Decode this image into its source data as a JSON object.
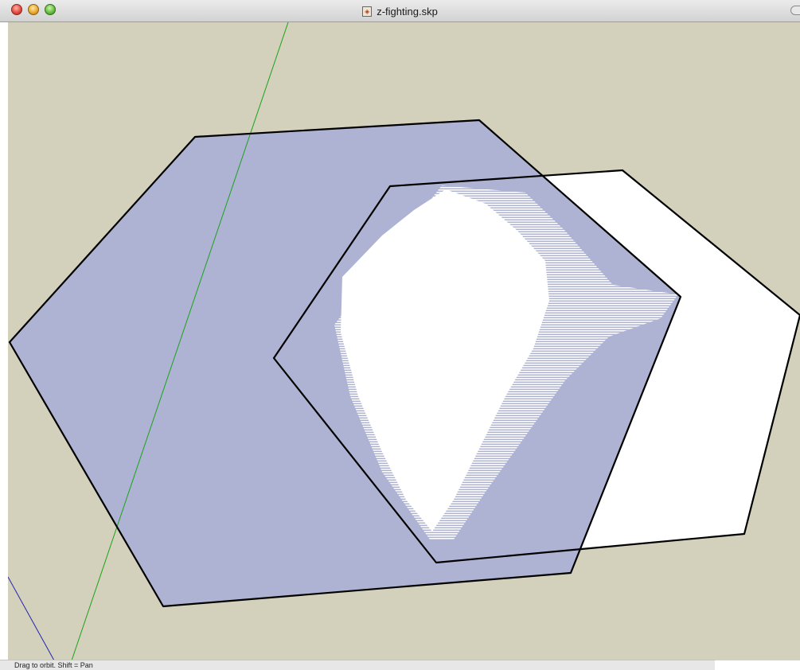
{
  "window": {
    "title": "z-fighting.skp",
    "file_icon": "skp-file-icon",
    "buttons": [
      "close-icon",
      "minimize-icon",
      "zoom-icon"
    ]
  },
  "viewport": {
    "background_color": "#d3d1bb",
    "large_face_color": "#aeb3d3",
    "small_face_color": "#ffffff",
    "edge_color": "#000000",
    "green_axis_color": "#1aa31a",
    "blue_axis_color": "#2323b0"
  },
  "statusbar": {
    "text": "Drag to orbit.  Shift = Pan"
  }
}
